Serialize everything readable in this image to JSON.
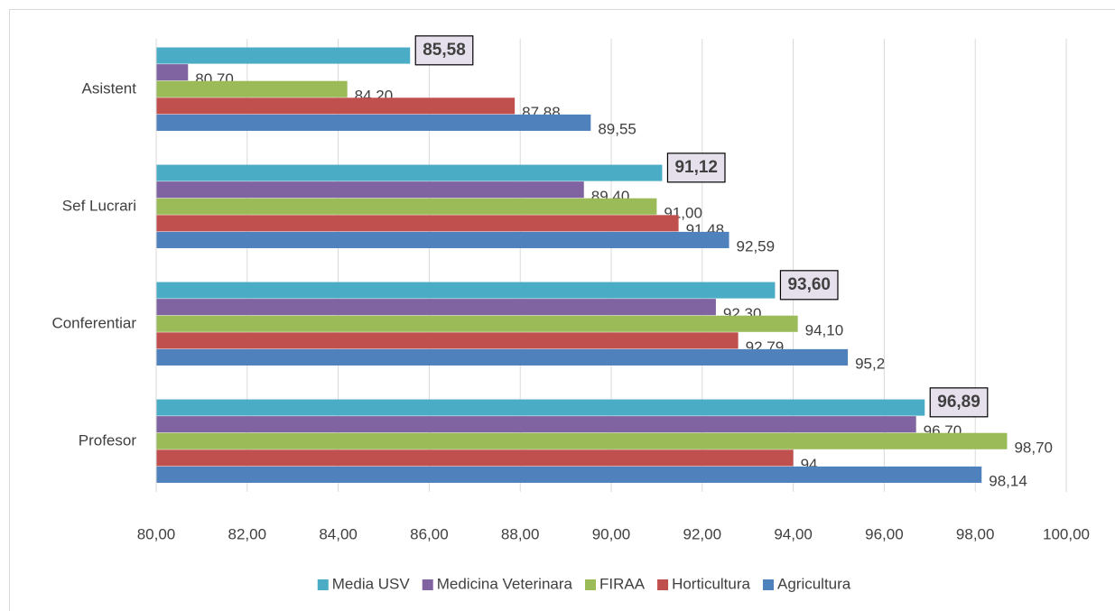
{
  "chart_data": {
    "type": "hbar",
    "categories": [
      "Asistent",
      "Sef Lucrari",
      "Conferentiar",
      "Profesor"
    ],
    "series": [
      {
        "name": "Media USV",
        "color": "#4bacc6",
        "values": [
          85.58,
          91.12,
          93.6,
          96.89
        ],
        "value_labels": [
          "85,58",
          "91,12",
          "93,60",
          "96,89"
        ]
      },
      {
        "name": "Medicina Veterinara",
        "color": "#8064a2",
        "values": [
          80.7,
          89.4,
          92.3,
          96.7
        ],
        "value_labels": [
          "80,70",
          "89,40",
          "92,30",
          "96,70"
        ]
      },
      {
        "name": "FIRAA",
        "color": "#9bbb59",
        "values": [
          84.2,
          91.0,
          94.1,
          98.7
        ],
        "value_labels": [
          "84,20",
          "91,00",
          "94,10",
          "98,70"
        ]
      },
      {
        "name": "Horticultura",
        "color": "#c0504d",
        "values": [
          87.88,
          91.48,
          92.79,
          94
        ],
        "value_labels": [
          "87,88",
          "91,48",
          "92,79",
          "94"
        ]
      },
      {
        "name": "Agricultura",
        "color": "#4f81bd",
        "values": [
          89.55,
          92.59,
          95.2,
          98.14
        ],
        "value_labels": [
          "89,55",
          "92,59",
          "95,2",
          "98,14"
        ]
      }
    ],
    "xlim": [
      80,
      100
    ],
    "xticks": [
      {
        "value": 80,
        "label": "80,00"
      },
      {
        "value": 82,
        "label": "82,00"
      },
      {
        "value": 84,
        "label": "84,00"
      },
      {
        "value": 86,
        "label": "86,00"
      },
      {
        "value": 88,
        "label": "88,00"
      },
      {
        "value": 90,
        "label": "90,00"
      },
      {
        "value": 92,
        "label": "92,00"
      },
      {
        "value": 94,
        "label": "94,00"
      },
      {
        "value": 96,
        "label": "96,00"
      },
      {
        "value": 98,
        "label": "98,00"
      },
      {
        "value": 100,
        "label": "100,00"
      }
    ],
    "grid": true,
    "legend": "bottom"
  }
}
